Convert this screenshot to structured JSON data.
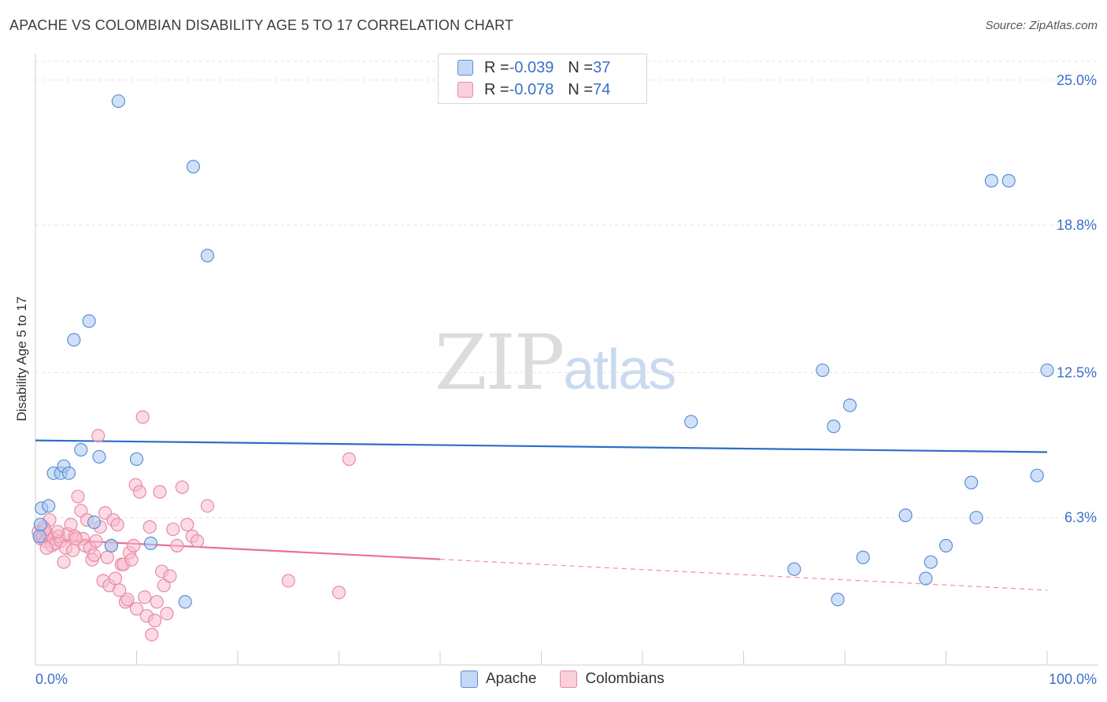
{
  "title": "APACHE VS COLOMBIAN DISABILITY AGE 5 TO 17 CORRELATION CHART",
  "source": "Source: ZipAtlas.com",
  "watermark": {
    "zip": "ZIP",
    "atlas": "atlas"
  },
  "legend": {
    "rows": [
      {
        "r_label": "R = ",
        "r_value": "-0.039",
        "n_label": "N = ",
        "n_value": "37"
      },
      {
        "r_label": "R = ",
        "r_value": "-0.078",
        "n_label": "N = ",
        "n_value": "74"
      }
    ]
  },
  "colors": {
    "apache_fill": "#a9c8f0",
    "apache_stroke": "#5b8fd6",
    "apache_line": "#2e6ec8",
    "colombian_fill": "#f7bccd",
    "colombian_stroke": "#e88aa5",
    "colombian_line": "#e8709a",
    "tick_label": "#3b6fc9",
    "grid": "#e2e2e2"
  },
  "chart_data": {
    "type": "scatter",
    "title": "APACHE VS COLOMBIAN DISABILITY AGE 5 TO 17 CORRELATION CHART",
    "xlabel": "",
    "ylabel": "Disability Age 5 to 17",
    "xlim": [
      0,
      100
    ],
    "ylim": [
      0,
      25.8
    ],
    "x_tick_labels": [
      "0.0%",
      "100.0%"
    ],
    "y_ticks": [
      6.3,
      12.5,
      18.8,
      25.0
    ],
    "y_tick_labels": [
      "6.3%",
      "12.5%",
      "18.8%",
      "25.0%"
    ],
    "series": [
      {
        "name": "Apache",
        "trend": {
          "x0": 0,
          "y0": 9.6,
          "x1": 100,
          "y1": 9.1,
          "solid_until": 100
        },
        "points": [
          [
            8.2,
            24.1
          ],
          [
            15.6,
            21.3
          ],
          [
            17.0,
            17.5
          ],
          [
            5.3,
            14.7
          ],
          [
            3.8,
            13.9
          ],
          [
            0.6,
            6.7
          ],
          [
            1.3,
            6.8
          ],
          [
            1.8,
            8.2
          ],
          [
            2.5,
            8.2
          ],
          [
            2.8,
            8.5
          ],
          [
            3.3,
            8.2
          ],
          [
            4.5,
            9.2
          ],
          [
            6.3,
            8.9
          ],
          [
            5.8,
            6.1
          ],
          [
            7.5,
            5.1
          ],
          [
            10.0,
            8.8
          ],
          [
            11.4,
            5.2
          ],
          [
            14.8,
            2.7
          ],
          [
            64.8,
            10.4
          ],
          [
            77.8,
            12.6
          ],
          [
            78.9,
            10.2
          ],
          [
            80.5,
            11.1
          ],
          [
            75.0,
            4.1
          ],
          [
            79.3,
            2.8
          ],
          [
            81.8,
            4.6
          ],
          [
            86.0,
            6.4
          ],
          [
            88.0,
            3.7
          ],
          [
            88.5,
            4.4
          ],
          [
            90.0,
            5.1
          ],
          [
            92.5,
            7.8
          ],
          [
            94.5,
            20.7
          ],
          [
            96.2,
            20.7
          ],
          [
            93.0,
            6.3
          ],
          [
            99.0,
            8.1
          ],
          [
            100.0,
            12.6
          ],
          [
            0.5,
            6.0
          ],
          [
            0.4,
            5.5
          ]
        ]
      },
      {
        "name": "Colombians",
        "trend": {
          "x0": 0,
          "y0": 5.4,
          "x1": 100,
          "y1": 3.2,
          "solid_until": 40
        },
        "points": [
          [
            0.3,
            5.7
          ],
          [
            0.5,
            5.4
          ],
          [
            0.7,
            5.5
          ],
          [
            0.8,
            5.9
          ],
          [
            1.0,
            5.3
          ],
          [
            1.2,
            5.6
          ],
          [
            1.4,
            6.2
          ],
          [
            1.6,
            5.1
          ],
          [
            1.8,
            5.4
          ],
          [
            2.0,
            5.2
          ],
          [
            2.3,
            5.5
          ],
          [
            2.5,
            5.3
          ],
          [
            2.8,
            4.4
          ],
          [
            3.0,
            5.0
          ],
          [
            3.2,
            5.6
          ],
          [
            3.5,
            6.0
          ],
          [
            3.7,
            4.9
          ],
          [
            3.9,
            5.5
          ],
          [
            4.2,
            7.2
          ],
          [
            4.5,
            6.6
          ],
          [
            4.7,
            5.4
          ],
          [
            4.9,
            5.1
          ],
          [
            5.1,
            6.2
          ],
          [
            5.4,
            5.0
          ],
          [
            5.6,
            4.5
          ],
          [
            5.8,
            4.7
          ],
          [
            6.0,
            5.3
          ],
          [
            6.2,
            9.8
          ],
          [
            6.4,
            5.9
          ],
          [
            6.7,
            3.6
          ],
          [
            6.9,
            6.5
          ],
          [
            7.1,
            4.6
          ],
          [
            7.3,
            3.4
          ],
          [
            7.5,
            5.1
          ],
          [
            7.7,
            6.2
          ],
          [
            7.9,
            3.7
          ],
          [
            8.1,
            6.0
          ],
          [
            8.3,
            3.2
          ],
          [
            8.5,
            4.3
          ],
          [
            8.7,
            4.3
          ],
          [
            8.9,
            2.7
          ],
          [
            9.1,
            2.8
          ],
          [
            9.3,
            4.8
          ],
          [
            9.5,
            4.5
          ],
          [
            9.7,
            5.1
          ],
          [
            9.9,
            7.7
          ],
          [
            10.0,
            2.4
          ],
          [
            10.3,
            7.4
          ],
          [
            10.6,
            10.6
          ],
          [
            10.8,
            2.9
          ],
          [
            11.0,
            2.1
          ],
          [
            11.3,
            5.9
          ],
          [
            11.5,
            1.3
          ],
          [
            11.8,
            1.9
          ],
          [
            12.0,
            2.7
          ],
          [
            12.3,
            7.4
          ],
          [
            12.5,
            4.0
          ],
          [
            12.7,
            3.4
          ],
          [
            13.0,
            2.2
          ],
          [
            13.3,
            3.8
          ],
          [
            13.6,
            5.8
          ],
          [
            14.0,
            5.1
          ],
          [
            14.5,
            7.6
          ],
          [
            15.0,
            6.0
          ],
          [
            15.5,
            5.5
          ],
          [
            16.0,
            5.3
          ],
          [
            17.0,
            6.8
          ],
          [
            25.0,
            3.6
          ],
          [
            31.0,
            8.8
          ],
          [
            30.0,
            3.1
          ],
          [
            1.1,
            5.0
          ],
          [
            0.9,
            5.8
          ],
          [
            2.2,
            5.7
          ],
          [
            4.0,
            5.4
          ]
        ]
      }
    ],
    "legend_labels": [
      "Apache",
      "Colombians"
    ]
  }
}
